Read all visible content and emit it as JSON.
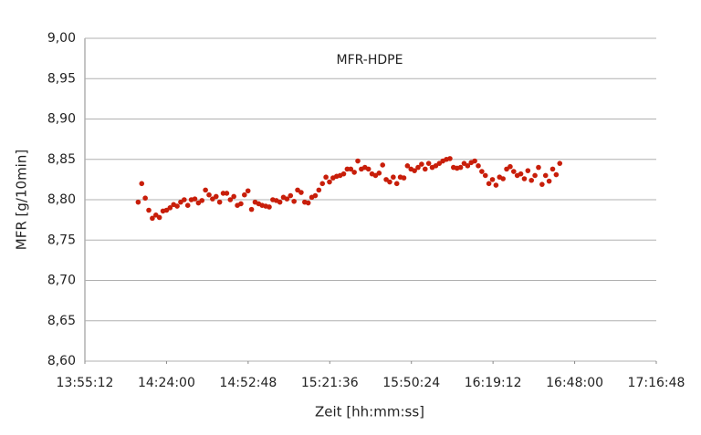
{
  "chart_data": {
    "type": "scatter",
    "title": "MFR-HDPE",
    "x_label": "Zeit [hh:mm:ss]",
    "y_label": "MFR [g/10min]",
    "color": "#c81e0a",
    "grid": true,
    "xlim": [
      50112,
      62208
    ],
    "xticks": [
      {
        "value": 50112,
        "label": "13:55:12"
      },
      {
        "value": 51840,
        "label": "14:24:00"
      },
      {
        "value": 53568,
        "label": "14:52:48"
      },
      {
        "value": 55296,
        "label": "15:21:36"
      },
      {
        "value": 57024,
        "label": "15:50:24"
      },
      {
        "value": 58752,
        "label": "16:19:12"
      },
      {
        "value": 60480,
        "label": "16:48:00"
      },
      {
        "value": 62208,
        "label": "17:16:48"
      }
    ],
    "ylim": [
      8.6,
      9.0
    ],
    "yticks": [
      {
        "value": 8.6,
        "label": "8,60"
      },
      {
        "value": 8.65,
        "label": "8,65"
      },
      {
        "value": 8.7,
        "label": "8,70"
      },
      {
        "value": 8.75,
        "label": "8,75"
      },
      {
        "value": 8.8,
        "label": "8,80"
      },
      {
        "value": 8.85,
        "label": "8,85"
      },
      {
        "value": 8.9,
        "label": "8,90"
      },
      {
        "value": 8.95,
        "label": "8,95"
      },
      {
        "value": 9.0,
        "label": "9,00"
      }
    ],
    "x": [
      51240,
      51315,
      51390,
      51465,
      51540,
      51615,
      51690,
      51765,
      51840,
      51915,
      51990,
      52065,
      52140,
      52215,
      52290,
      52365,
      52440,
      52515,
      52590,
      52665,
      52740,
      52815,
      52890,
      52965,
      53040,
      53115,
      53190,
      53265,
      53340,
      53415,
      53490,
      53565,
      53640,
      53715,
      53790,
      53865,
      53940,
      54015,
      54090,
      54165,
      54240,
      54315,
      54390,
      54465,
      54540,
      54615,
      54690,
      54765,
      54840,
      54915,
      54990,
      55065,
      55140,
      55215,
      55290,
      55365,
      55440,
      55515,
      55590,
      55665,
      55740,
      55815,
      55890,
      55965,
      56040,
      56115,
      56190,
      56265,
      56340,
      56415,
      56490,
      56565,
      56640,
      56715,
      56790,
      56865,
      56940,
      57015,
      57090,
      57165,
      57240,
      57315,
      57390,
      57465,
      57540,
      57615,
      57690,
      57765,
      57840,
      57915,
      57990,
      58065,
      58140,
      58215,
      58290,
      58365,
      58440,
      58515,
      58590,
      58665,
      58740,
      58815,
      58890,
      58965,
      59040,
      59115,
      59190,
      59265,
      59340,
      59415,
      59490,
      59565,
      59640,
      59715,
      59790,
      59865,
      59940,
      60015,
      60090,
      60165
    ],
    "values": [
      8.797,
      8.82,
      8.802,
      8.787,
      8.777,
      8.781,
      8.778,
      8.786,
      8.787,
      8.79,
      8.794,
      8.792,
      8.797,
      8.8,
      8.793,
      8.8,
      8.801,
      8.796,
      8.799,
      8.812,
      8.806,
      8.801,
      8.804,
      8.797,
      8.808,
      8.808,
      8.8,
      8.804,
      8.793,
      8.795,
      8.806,
      8.811,
      8.788,
      8.797,
      8.795,
      8.793,
      8.792,
      8.791,
      8.8,
      8.799,
      8.797,
      8.803,
      8.801,
      8.805,
      8.798,
      8.812,
      8.809,
      8.797,
      8.796,
      8.803,
      8.805,
      8.812,
      8.82,
      8.828,
      8.822,
      8.827,
      8.829,
      8.83,
      8.832,
      8.838,
      8.838,
      8.834,
      8.848,
      8.838,
      8.84,
      8.838,
      8.832,
      8.83,
      8.833,
      8.843,
      8.825,
      8.822,
      8.828,
      8.82,
      8.828,
      8.827,
      8.842,
      8.838,
      8.836,
      8.84,
      8.844,
      8.838,
      8.845,
      8.84,
      8.842,
      8.845,
      8.848,
      8.85,
      8.851,
      8.84,
      8.839,
      8.84,
      8.845,
      8.842,
      8.846,
      8.848,
      8.842,
      8.835,
      8.83,
      8.82,
      8.825,
      8.818,
      8.828,
      8.826,
      8.838,
      8.841,
      8.835,
      8.83,
      8.832,
      8.826,
      8.836,
      8.824,
      8.83,
      8.84,
      8.819,
      8.83,
      8.823,
      8.838,
      8.831,
      8.845
    ]
  }
}
